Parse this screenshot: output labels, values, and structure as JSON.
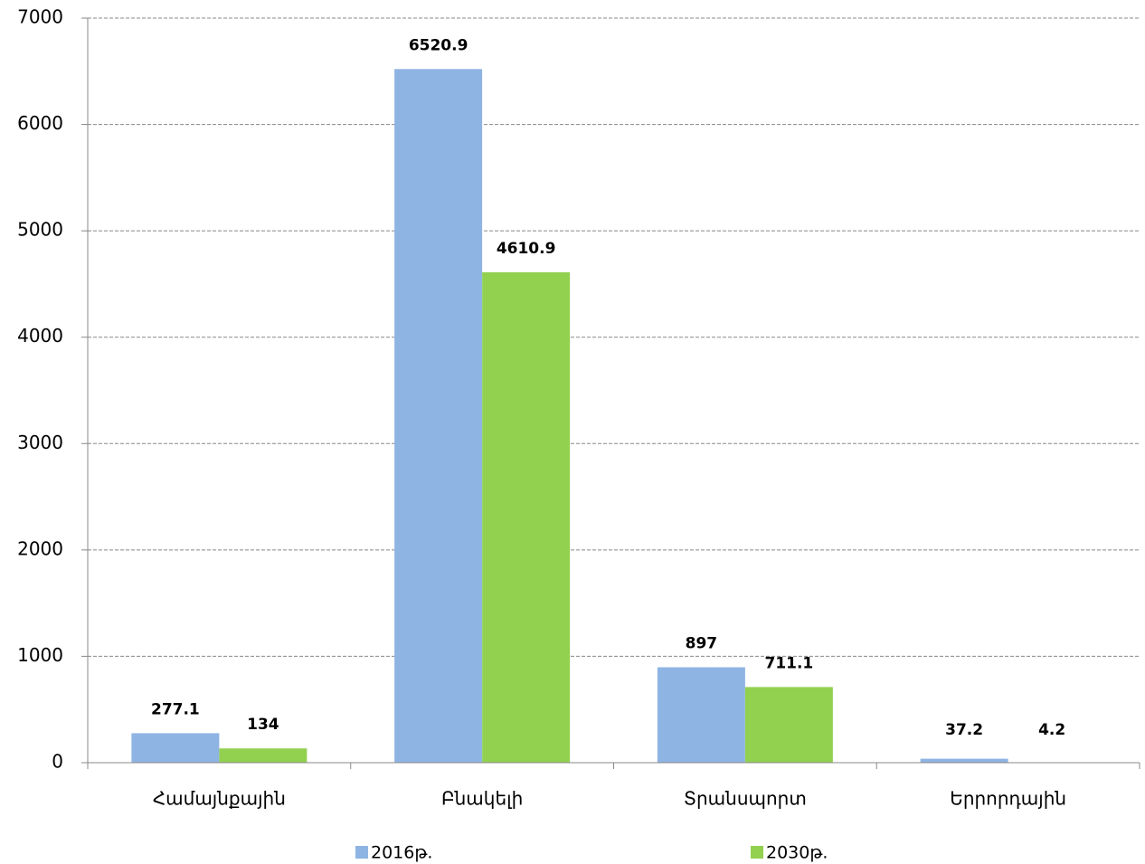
{
  "chart_data": {
    "type": "bar",
    "categories": [
      "Համայնքային",
      "Բնակելի",
      "Տրանսպորտ",
      "Երրորդային"
    ],
    "series": [
      {
        "name": "2016թ.",
        "color": "#8eb4e3",
        "values": [
          277.1,
          6520.9,
          897,
          37.2
        ]
      },
      {
        "name": "2030թ.",
        "color": "#92d050",
        "values": [
          134,
          4610.9,
          711.1,
          4.2
        ]
      }
    ],
    "ylim": [
      0,
      7000
    ],
    "yticks": [
      0,
      1000,
      2000,
      3000,
      4000,
      5000,
      6000,
      7000
    ],
    "grid": true
  }
}
